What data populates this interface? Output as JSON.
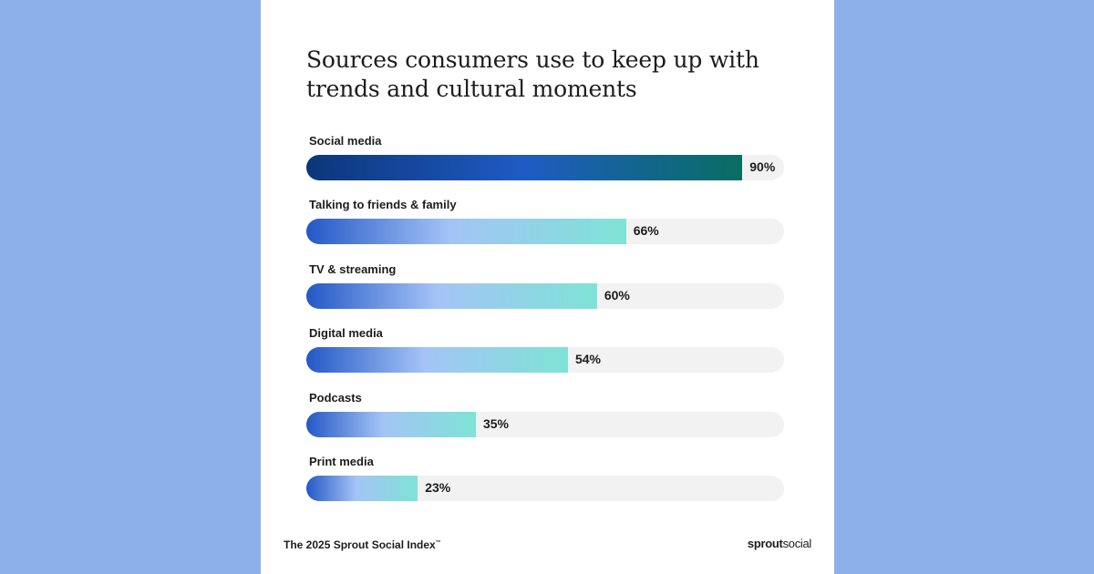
{
  "chart_data": {
    "type": "bar",
    "orientation": "horizontal",
    "title": "Sources consumers use to keep up with trends and cultural moments",
    "categories": [
      "Social media",
      "Talking to friends & family",
      "TV & streaming",
      "Digital media",
      "Podcasts",
      "Print media"
    ],
    "values": [
      90,
      66,
      60,
      54,
      35,
      23
    ],
    "value_labels": [
      "90%",
      "66%",
      "60%",
      "54%",
      "35%",
      "23%"
    ],
    "xlim": [
      0,
      100
    ],
    "grid": false,
    "legend": "none"
  },
  "footer": {
    "source_text": "The 2025 Sprout Social Index",
    "trademark": "™",
    "brand_prefix": "sprout",
    "brand_suffix": "social"
  },
  "colors": {
    "background": "#8cb1ea",
    "card": "#ffffff",
    "track": "#f2f2f2",
    "top_bar_start": "#0b3679",
    "top_bar_end": "#086e61",
    "bar_start": "#2458c6",
    "bar_end": "#7ee3d5"
  }
}
